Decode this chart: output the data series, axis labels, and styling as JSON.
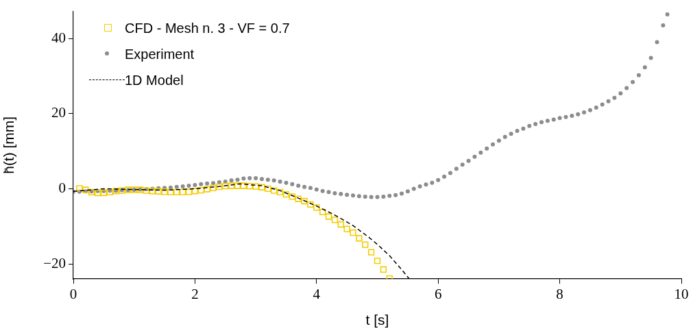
{
  "chart_data": {
    "type": "scatter",
    "xlabel": "t [s]",
    "ylabel": "h̄(t) [mm]",
    "xlim": [
      0,
      10
    ],
    "ylim": [
      -24,
      47.2
    ],
    "xticks": [
      0,
      2,
      4,
      6,
      8,
      10
    ],
    "yticks": [
      {
        "value": -20,
        "label": "−20"
      },
      0,
      20,
      40
    ],
    "grid": false,
    "legend": "top left",
    "series": [
      {
        "name": "CFD - Mesh n. 3 - VF = 0.7",
        "type": "scatter",
        "color": "#f5cc00",
        "marker": "square",
        "x": [
          0.1,
          0.2,
          0.3,
          0.4,
          0.5,
          0.6,
          0.7,
          0.8,
          0.9,
          1.0,
          1.1,
          1.2,
          1.3,
          1.4,
          1.5,
          1.6,
          1.7,
          1.8,
          1.9,
          2.0,
          2.1,
          2.2,
          2.3,
          2.4,
          2.5,
          2.6,
          2.7,
          2.8,
          2.9,
          3.0,
          3.1,
          3.2,
          3.3,
          3.4,
          3.5,
          3.6,
          3.7,
          3.8,
          3.9,
          4.0,
          4.1,
          4.2,
          4.3,
          4.4,
          4.5,
          4.6,
          4.7,
          4.8,
          4.9,
          5.0,
          5.1,
          5.2
        ],
        "values": [
          0.1,
          -0.3,
          -0.9,
          -1.1,
          -1.1,
          -0.9,
          -0.6,
          -0.5,
          -0.3,
          -0.3,
          -0.3,
          -0.5,
          -0.6,
          -0.7,
          -0.8,
          -0.9,
          -0.9,
          -0.9,
          -0.8,
          -0.6,
          -0.4,
          -0.1,
          0.2,
          0.5,
          0.7,
          0.8,
          0.8,
          0.8,
          0.7,
          0.6,
          0.4,
          0.0,
          -0.5,
          -0.9,
          -1.5,
          -2.1,
          -2.7,
          -3.3,
          -4.2,
          -5.0,
          -6.2,
          -7.4,
          -8.3,
          -9.5,
          -10.7,
          -11.7,
          -13.2,
          -14.9,
          -16.9,
          -19.2,
          -21.5,
          -23.9
        ]
      },
      {
        "name": "Experiment",
        "type": "scatter",
        "color": "#8c8c8c",
        "marker": "circle",
        "x": [
          0.0,
          0.1,
          0.2,
          0.3,
          0.4,
          0.5,
          0.6,
          0.7,
          0.8,
          0.9,
          1.0,
          1.1,
          1.2,
          1.3,
          1.4,
          1.5,
          1.6,
          1.7,
          1.8,
          1.9,
          2.0,
          2.1,
          2.2,
          2.3,
          2.4,
          2.5,
          2.6,
          2.7,
          2.8,
          2.9,
          3.0,
          3.1,
          3.2,
          3.3,
          3.4,
          3.5,
          3.6,
          3.7,
          3.8,
          3.9,
          4.0,
          4.1,
          4.2,
          4.3,
          4.4,
          4.5,
          4.6,
          4.7,
          4.8,
          4.9,
          5.0,
          5.1,
          5.2,
          5.3,
          5.4,
          5.5,
          5.6,
          5.7,
          5.8,
          5.9,
          6.0,
          6.1,
          6.2,
          6.3,
          6.4,
          6.5,
          6.6,
          6.7,
          6.8,
          6.9,
          7.0,
          7.1,
          7.2,
          7.3,
          7.4,
          7.5,
          7.6,
          7.7,
          7.8,
          7.9,
          8.0,
          8.1,
          8.2,
          8.3,
          8.4,
          8.5,
          8.6,
          8.7,
          8.8,
          8.9,
          9.0,
          9.1,
          9.2,
          9.3,
          9.4,
          9.5,
          9.6,
          9.7,
          9.77
        ],
        "values": [
          -0.8,
          -0.8,
          -0.7,
          -0.7,
          -0.6,
          -0.6,
          -0.5,
          -0.5,
          -0.4,
          -0.4,
          -0.3,
          -0.2,
          -0.1,
          0.0,
          0.1,
          0.2,
          0.3,
          0.5,
          0.6,
          0.8,
          1.0,
          1.2,
          1.4,
          1.5,
          1.7,
          1.9,
          2.2,
          2.4,
          2.7,
          2.8,
          2.8,
          2.6,
          2.4,
          2.2,
          1.9,
          1.6,
          1.2,
          0.8,
          0.5,
          0.2,
          -0.2,
          -0.6,
          -0.9,
          -1.2,
          -1.4,
          -1.6,
          -1.8,
          -2.0,
          -2.1,
          -2.2,
          -2.2,
          -2.1,
          -1.9,
          -1.7,
          -1.3,
          -0.7,
          0.0,
          0.6,
          1.1,
          1.6,
          2.3,
          3.2,
          4.2,
          5.3,
          6.4,
          7.4,
          8.5,
          9.6,
          10.7,
          11.8,
          12.8,
          13.8,
          14.6,
          15.4,
          16.0,
          16.7,
          17.2,
          17.7,
          18.1,
          18.4,
          18.8,
          19.1,
          19.4,
          19.8,
          20.3,
          20.9,
          21.6,
          22.4,
          23.3,
          24.2,
          25.4,
          26.8,
          28.4,
          30.2,
          32.3,
          34.8,
          39.0,
          43.5,
          46.4
        ]
      },
      {
        "name": "1D Model",
        "type": "line",
        "color": "#000000",
        "marker": "none",
        "line_style": "dashed",
        "x": [
          0,
          0.5,
          1.0,
          1.5,
          2.0,
          2.4,
          2.75,
          3.1,
          3.4,
          3.7,
          4.0,
          4.3,
          4.6,
          4.85,
          5.0,
          5.2,
          5.4,
          5.52
        ],
        "values": [
          -0.7,
          0.0,
          -0.2,
          -0.4,
          0.0,
          0.6,
          1.3,
          0.8,
          -0.5,
          -2.5,
          -4.6,
          -7.0,
          -9.8,
          -12.8,
          -14.8,
          -17.8,
          -21.5,
          -23.9
        ]
      }
    ]
  }
}
